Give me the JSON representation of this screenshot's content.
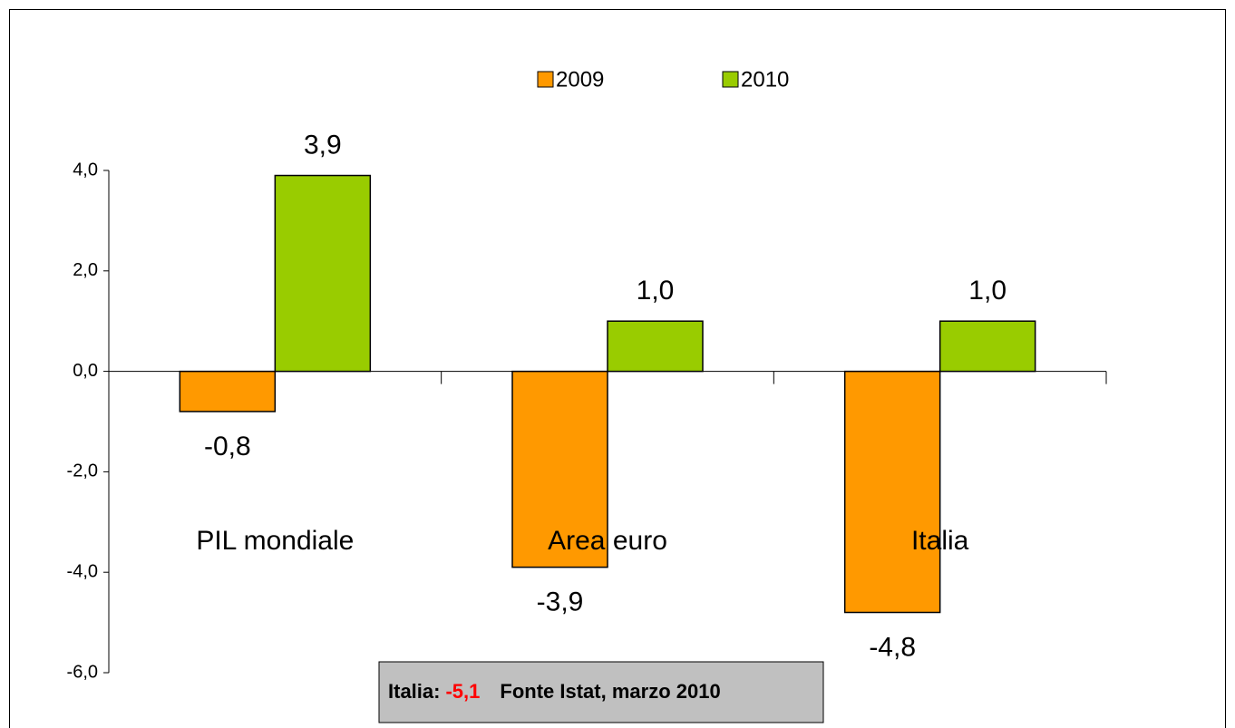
{
  "chart_data": {
    "type": "bar",
    "categories": [
      "PIL mondiale",
      "Area euro",
      "Italia"
    ],
    "series": [
      {
        "name": "2009",
        "color": "#ff9900",
        "values": [
          -0.8,
          -3.9,
          -4.8
        ],
        "value_labels": [
          "-0,8",
          "-3,9",
          "-4,8"
        ]
      },
      {
        "name": "2010",
        "color": "#99cc00",
        "values": [
          3.9,
          1.0,
          1.0
        ],
        "value_labels": [
          "3,9",
          "1,0",
          "1,0"
        ]
      }
    ],
    "ylim": [
      -6,
      4
    ],
    "yticks": [
      {
        "value": 4,
        "label": "4,0"
      },
      {
        "value": 2,
        "label": "2,0"
      },
      {
        "value": 0,
        "label": "0,0"
      },
      {
        "value": -2,
        "label": "-2,0"
      },
      {
        "value": -4,
        "label": "-4,0"
      },
      {
        "value": -6,
        "label": "-6,0"
      }
    ],
    "legend": "top",
    "annotation": {
      "label": "Italia:",
      "value": "-5,1",
      "source": "Fonte Istat, marzo 2010"
    }
  }
}
